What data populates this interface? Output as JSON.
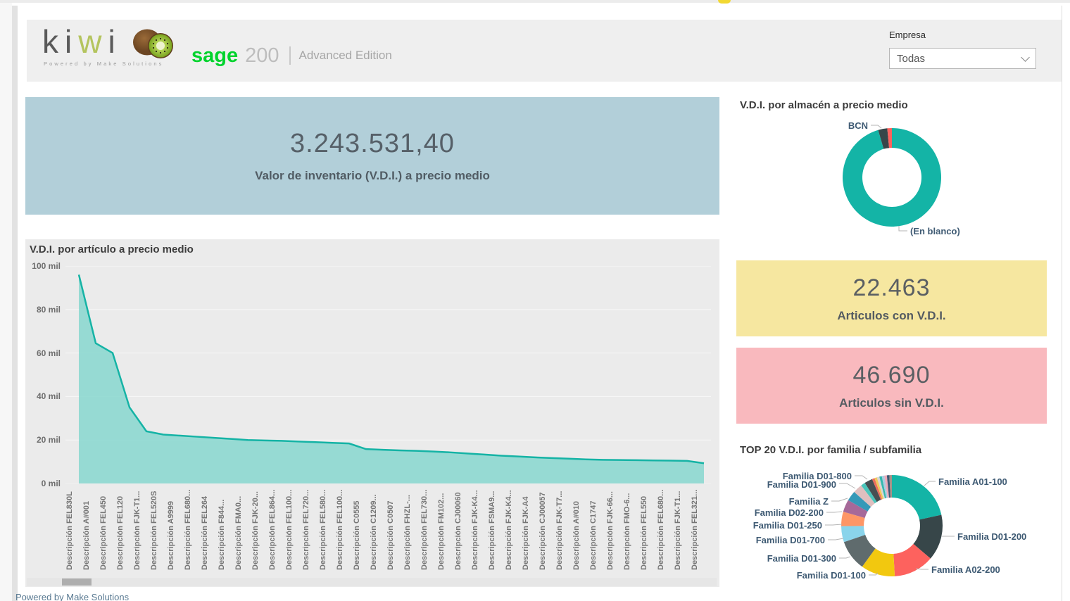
{
  "header": {
    "logo": {
      "letters": [
        "k",
        "i",
        "w",
        "i"
      ],
      "tagline": "Powered by Make Solutions"
    },
    "sage": {
      "brand": "sage",
      "product": "200",
      "edition": "Advanced Edition"
    },
    "empresa": {
      "label": "Empresa",
      "value": "Todas"
    }
  },
  "kpi_main": {
    "value": "3.243.531,40",
    "label": "Valor de inventario (V.D.I.) a precio medio",
    "bg": "#b2cfd9"
  },
  "kpi_con": {
    "value": "22.463",
    "label": "Articulos con V.D.I.",
    "bg": "#f6e7a0"
  },
  "kpi_sin": {
    "value": "46.690",
    "label": "Articulos sin V.D.I.",
    "bg": "#f9b9be"
  },
  "footer": {
    "text": "Powered by Make Solutions"
  },
  "colors": {
    "accent_teal": "#14b4a6",
    "dark_slate": "#374649",
    "red": "#fd625e",
    "panel_gray": "#ebebeb"
  },
  "chart_data": [
    {
      "type": "area",
      "title": "V.D.I. por artículo a precio medio",
      "xlabel": "",
      "ylabel": "",
      "ylim": [
        0,
        100
      ],
      "values_unit": "mil",
      "grid": true,
      "y_ticks": [
        "100 mil",
        "80 mil",
        "60 mil",
        "40 mil",
        "20 mil",
        "0 mil"
      ],
      "line_color": "#15b3a5",
      "fill_color": "#8dd8d0",
      "categories": [
        "Descripción FEL830L",
        "Descripción A#001",
        "Descripción FEL450",
        "Descripción FEL120",
        "Descripción FJK-T1...",
        "Descripción FEL520S",
        "Descripción A9999",
        "Descripción FEL680...",
        "Descripción FEL264",
        "Descripción F844...",
        "Descripción FMA0...",
        "Descripción FJK-20...",
        "Descripción FEL864...",
        "Descripción FEL100...",
        "Descripción FEL720...",
        "Descripción FEL580...",
        "Descripción FEL100...",
        "Descripción C0555",
        "Descripción C1209...",
        "Descripción C0507",
        "Descripción FHZL-...",
        "Descripción FEL730...",
        "Descripción FM102...",
        "Descripción CJ00060",
        "Descripción FJK-K4...",
        "Descripción FSMA9...",
        "Descripción FJK-K4...",
        "Descripción FJK-A4",
        "Descripción CJ00057",
        "Descripción FJK-T7...",
        "Descripción A#010",
        "Descripción C1747",
        "Descripción FJK-66...",
        "Descripción FMO-6...",
        "Descripción FEL550",
        "Descripción FEL680...",
        "Descripción FJK-T1...",
        "Descripción FEL321..."
      ],
      "values": [
        96,
        64.5,
        60,
        35,
        24,
        22.5,
        22,
        21.5,
        21,
        20.5,
        20,
        19.8,
        19.6,
        19.3,
        19,
        18.7,
        18.4,
        15.8,
        15.5,
        15.2,
        15,
        14.7,
        14.3,
        13.8,
        13.3,
        12.8,
        12.4,
        12,
        11.7,
        11.4,
        11.1,
        10.9,
        10.8,
        10.7,
        10.6,
        10.5,
        10.4,
        9.3
      ]
    },
    {
      "type": "pie",
      "title": "V.D.I. por almacén a precio medio",
      "donut": true,
      "legend": "callout",
      "slices": [
        {
          "label": "(En blanco)",
          "value": 95.5,
          "color": "#14b4a6"
        },
        {
          "label": "BCN",
          "value": 3.0,
          "color": "#374649"
        },
        {
          "label": "",
          "value": 1.5,
          "color": "#fd625e"
        }
      ]
    },
    {
      "type": "pie",
      "title": "TOP 20 V.D.I. por familia / subfamilia",
      "donut": true,
      "legend": "callout",
      "slices": [
        {
          "label": "Familia A01-100",
          "value": 21.6,
          "color": "#14b4a6"
        },
        {
          "label": "Familia D01-200",
          "value": 14.7,
          "color": "#374649"
        },
        {
          "label": "Familia A02-200",
          "value": 12.9,
          "color": "#fd625e"
        },
        {
          "label": "Familia D01-100",
          "value": 10.9,
          "color": "#f2c80f"
        },
        {
          "label": "Familia D01-300",
          "value": 9.8,
          "color": "#5f6b6d"
        },
        {
          "label": "Familia D01-700",
          "value": 5.1,
          "color": "#8ad4eb"
        },
        {
          "label": "Familia D01-250",
          "value": 4.6,
          "color": "#fe9666"
        },
        {
          "label": "Familia D02-200",
          "value": 4.0,
          "color": "#a66999"
        },
        {
          "label": "Familia Z",
          "value": 3.2,
          "color": "#3599b8"
        },
        {
          "label": "Familia D01-900",
          "value": 3.0,
          "color": "#dfbfbf"
        },
        {
          "label": "",
          "value": 1.4,
          "color": "#4ac5bb"
        },
        {
          "label": "Familia D01-800",
          "value": 2.6,
          "color": "#474f52"
        },
        {
          "label": "",
          "value": 0.8,
          "color": "#ed6e5c"
        },
        {
          "label": "",
          "value": 0.8,
          "color": "#efc95c"
        },
        {
          "label": "",
          "value": 0.8,
          "color": "#d8d5d3"
        },
        {
          "label": "",
          "value": 0.8,
          "color": "#35b8ae"
        },
        {
          "label": "",
          "value": 0.8,
          "color": "#a9cce0"
        },
        {
          "label": "",
          "value": 0.8,
          "color": "#efa9b8"
        },
        {
          "label": "",
          "value": 0.8,
          "color": "#3d5a73"
        },
        {
          "label": "",
          "value": 0.8,
          "color": "#a79288"
        }
      ]
    }
  ]
}
